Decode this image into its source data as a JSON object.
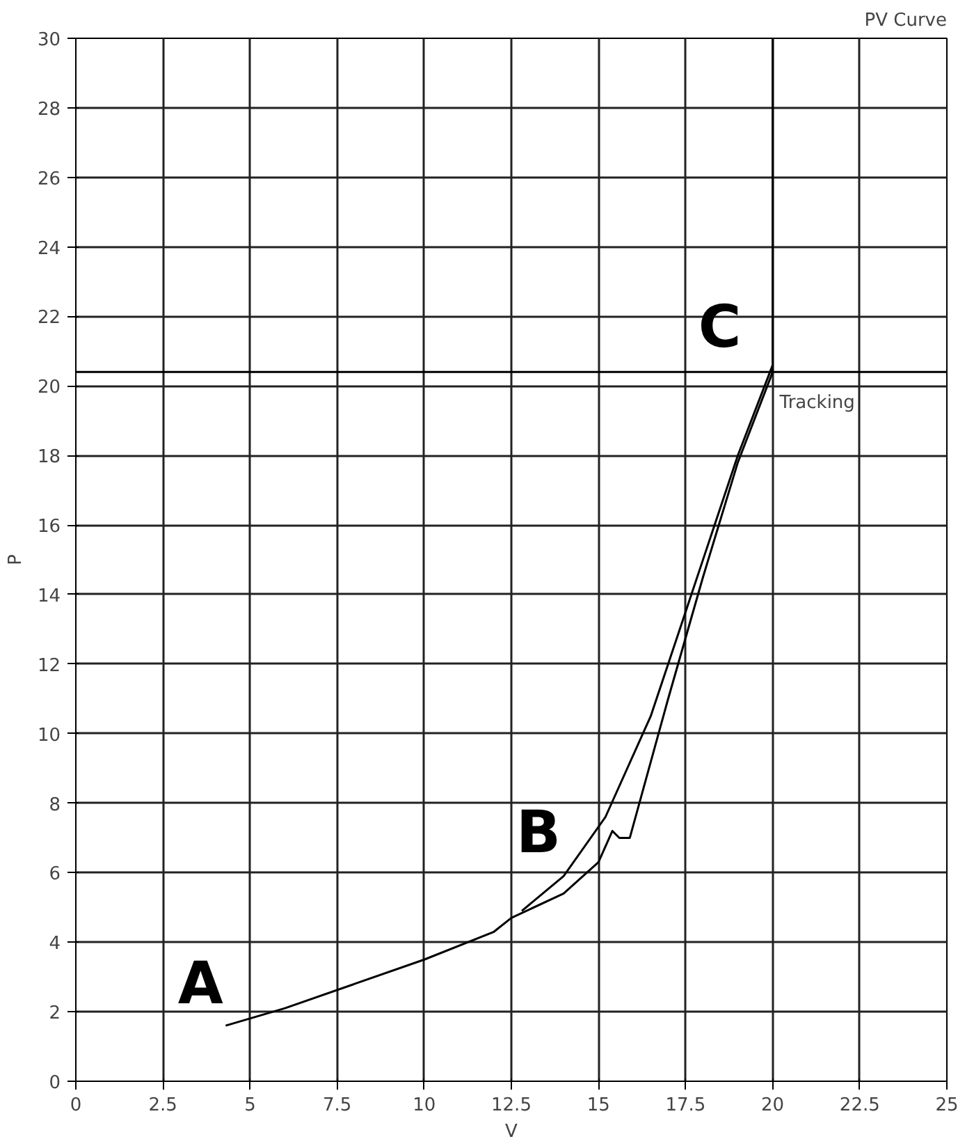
{
  "chart_data": {
    "type": "line",
    "title": "PV Curve",
    "xlabel": "V",
    "ylabel": "P",
    "xlim": [
      0,
      25
    ],
    "xticks": [
      0,
      2.5,
      5,
      7.5,
      10,
      12.5,
      15,
      17.5,
      20,
      22.5,
      25
    ],
    "ylim": [
      0,
      30
    ],
    "yticks": [
      0,
      2,
      4,
      6,
      8,
      10,
      12,
      14,
      16,
      18,
      20,
      22,
      24,
      26,
      28,
      30
    ],
    "grid": true,
    "line_style": "solid",
    "marker": "none",
    "series": [
      {
        "color": "#000000",
        "x": [
          4.3,
          6,
          8,
          10,
          12,
          12.5,
          14,
          15,
          15.4,
          15.6,
          15.9,
          17,
          18,
          19,
          20,
          20
        ],
        "values": [
          1.6,
          2.1,
          2.8,
          3.5,
          4.3,
          4.7,
          5.4,
          6.3,
          7.2,
          7.0,
          7.0,
          11,
          14.5,
          17.8,
          20.4,
          30
        ]
      },
      {
        "color": "#000000",
        "x": [
          12.8,
          14,
          15.2,
          16.5,
          17.5,
          19,
          20
        ],
        "values": [
          4.9,
          5.9,
          7.6,
          10.5,
          13.5,
          18,
          20.6
        ]
      }
    ],
    "ref_lines": [
      {
        "axis": "y",
        "value": 20.4,
        "label": "Tracking",
        "color": "#000000"
      }
    ],
    "annotations": [
      {
        "text": "A",
        "x": 4.3,
        "y": 1.6
      },
      {
        "text": "B",
        "x": 12.8,
        "y": 4.9
      },
      {
        "text": "C",
        "x": 20,
        "y": 20.4
      }
    ]
  }
}
